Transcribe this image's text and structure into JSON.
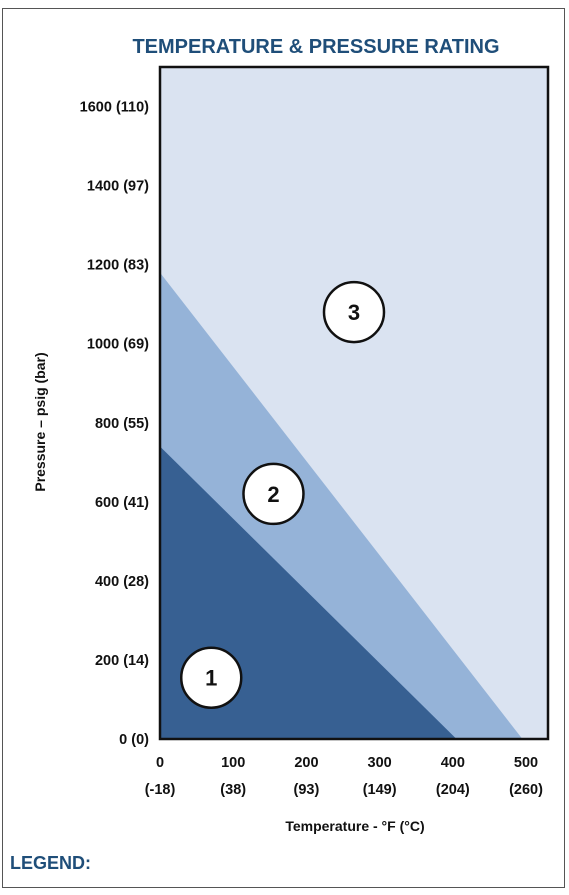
{
  "chart_data": {
    "type": "area",
    "title": "TEMPERATURE & PRESSURE RATING",
    "xlabel": "Temperature - °F (°C)",
    "ylabel": "Pressure – psig (bar)",
    "xlim": [
      0,
      530
    ],
    "ylim": [
      0,
      1700
    ],
    "x_ticks": [
      {
        "value": 0,
        "label_f": "0",
        "label_c": "(-18)"
      },
      {
        "value": 100,
        "label_f": "100",
        "label_c": "(38)"
      },
      {
        "value": 200,
        "label_f": "200",
        "label_c": "(93)"
      },
      {
        "value": 300,
        "label_f": "300",
        "label_c": "(149)"
      },
      {
        "value": 400,
        "label_f": "400",
        "label_c": "(204)"
      },
      {
        "value": 500,
        "label_f": "500",
        "label_c": "(260)"
      }
    ],
    "y_ticks": [
      {
        "value": 0,
        "label": "0 (0)"
      },
      {
        "value": 200,
        "label": "200 (14)"
      },
      {
        "value": 400,
        "label": "400 (28)"
      },
      {
        "value": 600,
        "label": "600 (41)"
      },
      {
        "value": 800,
        "label": "800 (55)"
      },
      {
        "value": 1000,
        "label": "1000 (69)"
      },
      {
        "value": 1200,
        "label": "1200 (83)"
      },
      {
        "value": 1400,
        "label": "1400 (97)"
      },
      {
        "value": 1600,
        "label": "1600 (110)"
      }
    ],
    "zones": [
      {
        "name": "3",
        "color": "#dae3f1",
        "boundary": [
          [
            0,
            1700
          ],
          [
            530,
            1700
          ],
          [
            530,
            0
          ],
          [
            0,
            0
          ]
        ],
        "label_pos": [
          265,
          1080
        ]
      },
      {
        "name": "2",
        "color": "#95b3d8",
        "boundary": [
          [
            0,
            1180
          ],
          [
            495,
            0
          ],
          [
            0,
            0
          ]
        ],
        "label_pos": [
          155,
          620
        ]
      },
      {
        "name": "1",
        "color": "#376092",
        "boundary": [
          [
            0,
            740
          ],
          [
            405,
            0
          ],
          [
            0,
            0
          ]
        ],
        "label_pos": [
          70,
          155
        ]
      }
    ],
    "grid": false
  },
  "legend_heading": "LEGEND:",
  "colors": {
    "title": "#1f4e79",
    "zone_1": "#376092",
    "zone_2": "#95b3d8",
    "zone_3": "#dae3f1"
  }
}
